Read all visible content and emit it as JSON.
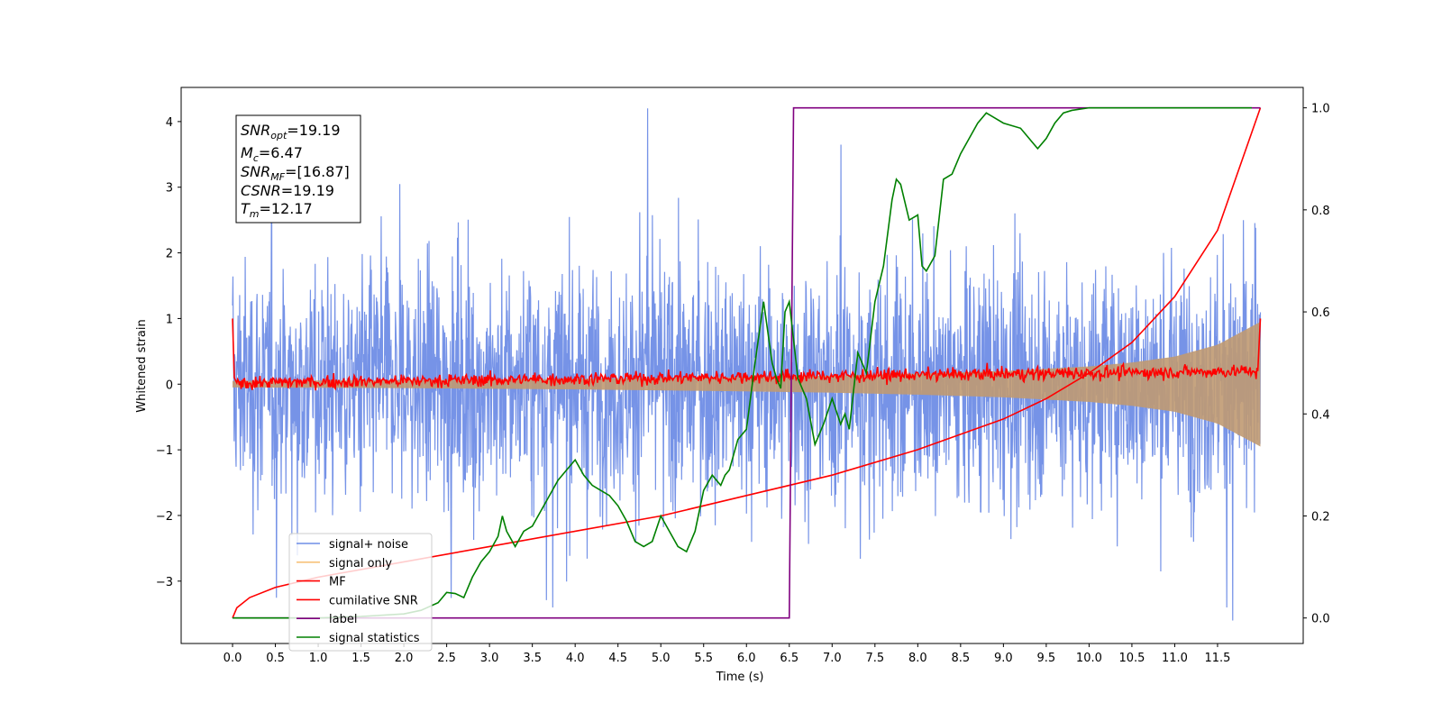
{
  "chart_data": {
    "type": "line",
    "xlabel": "Time (s)",
    "ylabel": "Whitened strain",
    "xlim": [
      -0.6,
      12.5
    ],
    "ylim": [
      -3.95,
      4.52
    ],
    "y2lim": [
      -0.05,
      1.04
    ],
    "x_ticks": [
      0.0,
      0.5,
      1.0,
      1.5,
      2.0,
      2.5,
      3.0,
      3.5,
      4.0,
      4.5,
      5.0,
      5.5,
      6.0,
      6.5,
      7.0,
      7.5,
      8.0,
      8.5,
      9.0,
      9.5,
      10.0,
      10.5,
      11.0,
      11.5
    ],
    "x_tick_labels": [
      "0.0",
      "0.5",
      "1.0",
      "1.5",
      "2.0",
      "2.5",
      "3.0",
      "3.5",
      "4.0",
      "4.5",
      "5.0",
      "5.5",
      "6.0",
      "6.5",
      "7.0",
      "7.5",
      "8.0",
      "8.5",
      "9.0",
      "9.5",
      "10.0",
      "10.5",
      "11.0",
      "11.5"
    ],
    "y_ticks": [
      -3,
      -2,
      -1,
      0,
      1,
      2,
      3,
      4
    ],
    "y_tick_labels": [
      "−3",
      "−2",
      "−1",
      "0",
      "1",
      "2",
      "3",
      "4"
    ],
    "y2_ticks": [
      0.0,
      0.2,
      0.4,
      0.6,
      0.8,
      1.0
    ],
    "y2_tick_labels": [
      "0.0",
      "0.2",
      "0.4",
      "0.6",
      "0.8",
      "1.0"
    ],
    "annotations": {
      "snr_opt": {
        "label": "SNR",
        "sub": "opt",
        "value": "=19.19"
      },
      "mc": {
        "label": "M",
        "sub": "c",
        "value": "=6.47"
      },
      "snr_mf": {
        "label": "SNR",
        "sub": "MF",
        "value": "=[16.87]"
      },
      "csnr": {
        "label": "CSNR",
        "sub": "",
        "value": "=19.19"
      },
      "tm": {
        "label": "T",
        "sub": "m",
        "value": "=12.17"
      }
    },
    "legend": {
      "placement": "lower-left",
      "entries": [
        {
          "name": "signal+ noise",
          "color": "#6f8de6"
        },
        {
          "name": "signal only",
          "color": "#f7c27a"
        },
        {
          "name": "MF",
          "color": "#ff0000"
        },
        {
          "name": "cumilative SNR",
          "color": "#ff0000"
        },
        {
          "name": "label",
          "color": "#800080"
        },
        {
          "name": "signal statistics",
          "color": "#008000"
        }
      ]
    },
    "series": [
      {
        "name": "signal+ noise",
        "axis": "left",
        "color": "#6f8de6",
        "t_range": [
          0,
          12
        ],
        "amplitude_typical": 1.0,
        "peak_values": [
          4.2,
          -3.35,
          3.75,
          -3.6
        ]
      },
      {
        "name": "signal only",
        "axis": "left",
        "color": "#f7c27a",
        "t_range": [
          0,
          12
        ],
        "envelope": {
          "x": [
            0,
            2,
            4,
            6,
            7,
            8,
            9,
            10,
            10.5,
            11,
            11.5,
            12
          ],
          "y": [
            0.05,
            0.06,
            0.08,
            0.11,
            0.13,
            0.16,
            0.2,
            0.27,
            0.33,
            0.42,
            0.6,
            0.95
          ]
        }
      },
      {
        "name": "MF",
        "axis": "left",
        "color": "#ff0000",
        "x": [
          0.0,
          0.02,
          0.05,
          11.97,
          12.0
        ],
        "y": [
          1.0,
          0.1,
          0.02,
          0.2,
          1.0
        ],
        "noise_level": 0.05
      },
      {
        "name": "cumilative SNR",
        "axis": "right",
        "color": "#ff0000",
        "x": [
          0.0,
          0.05,
          0.2,
          0.5,
          1.0,
          2.0,
          3.0,
          4.0,
          5.0,
          6.0,
          7.0,
          8.0,
          9.0,
          9.5,
          10.0,
          10.5,
          11.0,
          11.5,
          12.0
        ],
        "y": [
          0.0,
          0.02,
          0.04,
          0.06,
          0.08,
          0.11,
          0.14,
          0.17,
          0.2,
          0.24,
          0.28,
          0.33,
          0.39,
          0.43,
          0.48,
          0.54,
          0.63,
          0.76,
          1.0
        ]
      },
      {
        "name": "label",
        "axis": "right",
        "color": "#800080",
        "x": [
          0.0,
          6.5,
          6.55,
          12.0
        ],
        "y": [
          0.0,
          0.0,
          1.0,
          1.0
        ]
      },
      {
        "name": "signal statistics",
        "axis": "right",
        "color": "#008000",
        "x": [
          0.0,
          1.0,
          1.5,
          2.0,
          2.2,
          2.4,
          2.5,
          2.6,
          2.7,
          2.75,
          2.8,
          2.9,
          3.0,
          3.1,
          3.15,
          3.2,
          3.3,
          3.4,
          3.5,
          3.6,
          3.7,
          3.8,
          3.9,
          4.0,
          4.1,
          4.2,
          4.3,
          4.4,
          4.5,
          4.6,
          4.7,
          4.8,
          4.9,
          5.0,
          5.1,
          5.2,
          5.3,
          5.35,
          5.4,
          5.5,
          5.6,
          5.7,
          5.75,
          5.8,
          5.9,
          6.0,
          6.1,
          6.2,
          6.3,
          6.35,
          6.4,
          6.45,
          6.5,
          6.6,
          6.7,
          6.8,
          6.9,
          7.0,
          7.1,
          7.15,
          7.2,
          7.3,
          7.4,
          7.5,
          7.6,
          7.7,
          7.75,
          7.8,
          7.9,
          8.0,
          8.05,
          8.1,
          8.2,
          8.3,
          8.4,
          8.5,
          8.6,
          8.7,
          8.8,
          8.9,
          9.0,
          9.2,
          9.4,
          9.5,
          9.6,
          9.7,
          9.8,
          10.0,
          10.5,
          11.0,
          11.9
        ],
        "y": [
          0.0,
          0.0,
          0.003,
          0.008,
          0.015,
          0.03,
          0.05,
          0.048,
          0.04,
          0.06,
          0.08,
          0.11,
          0.13,
          0.16,
          0.2,
          0.17,
          0.14,
          0.17,
          0.18,
          0.21,
          0.24,
          0.27,
          0.29,
          0.31,
          0.28,
          0.26,
          0.25,
          0.24,
          0.22,
          0.19,
          0.15,
          0.14,
          0.15,
          0.2,
          0.17,
          0.14,
          0.13,
          0.15,
          0.17,
          0.25,
          0.28,
          0.26,
          0.28,
          0.29,
          0.35,
          0.37,
          0.5,
          0.62,
          0.5,
          0.47,
          0.45,
          0.6,
          0.62,
          0.47,
          0.43,
          0.34,
          0.38,
          0.43,
          0.38,
          0.4,
          0.37,
          0.52,
          0.48,
          0.62,
          0.69,
          0.82,
          0.86,
          0.85,
          0.78,
          0.79,
          0.69,
          0.68,
          0.71,
          0.86,
          0.87,
          0.91,
          0.94,
          0.97,
          0.99,
          0.98,
          0.97,
          0.96,
          0.92,
          0.94,
          0.97,
          0.99,
          0.995,
          1.0,
          1.0,
          1.0,
          1.0
        ]
      }
    ]
  }
}
